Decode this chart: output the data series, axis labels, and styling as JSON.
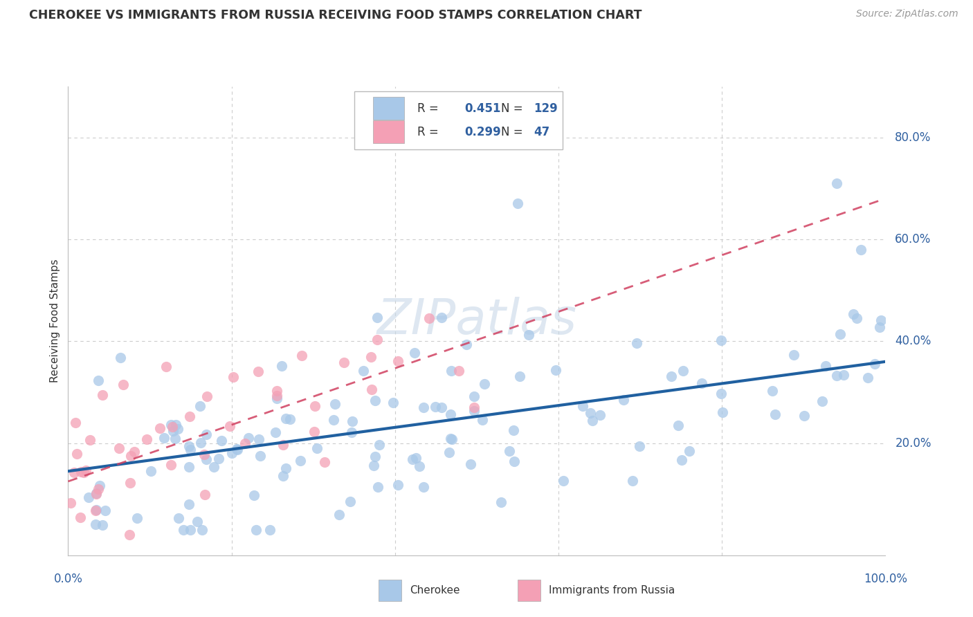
{
  "title": "CHEROKEE VS IMMIGRANTS FROM RUSSIA RECEIVING FOOD STAMPS CORRELATION CHART",
  "source": "Source: ZipAtlas.com",
  "ylabel": "Receiving Food Stamps",
  "legend_label1": "Cherokee",
  "legend_label2": "Immigrants from Russia",
  "r1": 0.451,
  "n1": 129,
  "r2": 0.299,
  "n2": 47,
  "color_blue": "#a8c8e8",
  "color_pink": "#f4a0b5",
  "color_line_blue": "#2060a0",
  "color_line_pink": "#d04060",
  "bg_color": "#ffffff",
  "grid_color": "#cccccc",
  "text_color": "#333333",
  "axis_label_color": "#3060a0",
  "ytick_labels": [
    "20.0%",
    "40.0%",
    "60.0%",
    "80.0%"
  ],
  "ytick_values": [
    0.2,
    0.4,
    0.6,
    0.8
  ],
  "xlim": [
    0.0,
    1.0
  ],
  "ylim": [
    -0.02,
    0.9
  ],
  "blue_line_x0": 0.0,
  "blue_line_y0": 0.145,
  "blue_line_x1": 1.0,
  "blue_line_y1": 0.36,
  "pink_line_x0": 0.0,
  "pink_line_y0": 0.125,
  "pink_line_x1": 1.0,
  "pink_line_y1": 0.68
}
